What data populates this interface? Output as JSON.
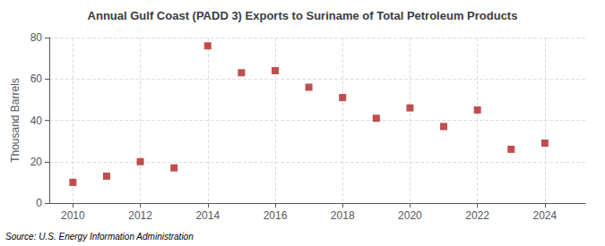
{
  "chart_data": {
    "type": "scatter",
    "title": "Annual Gulf Coast (PADD 3) Exports to Suriname of Total Petroleum Products",
    "ylabel": "Thousand Barrels",
    "source": "Source: U.S. Energy Information Administration",
    "x": [
      2010,
      2011,
      2012,
      2013,
      2014,
      2015,
      2016,
      2017,
      2018,
      2019,
      2020,
      2021,
      2022,
      2023,
      2024
    ],
    "values": [
      10,
      13,
      20,
      17,
      76,
      63,
      64,
      56,
      51,
      41,
      46,
      37,
      45,
      26,
      29
    ],
    "color": "#b22222",
    "marker": "square",
    "xlim": [
      2009.3,
      2025.2
    ],
    "xticks": [
      2010,
      2012,
      2014,
      2016,
      2018,
      2020,
      2022,
      2024
    ],
    "ylim": [
      0,
      80
    ],
    "yticks": [
      0,
      20,
      40,
      60,
      80
    ],
    "grid": true
  }
}
